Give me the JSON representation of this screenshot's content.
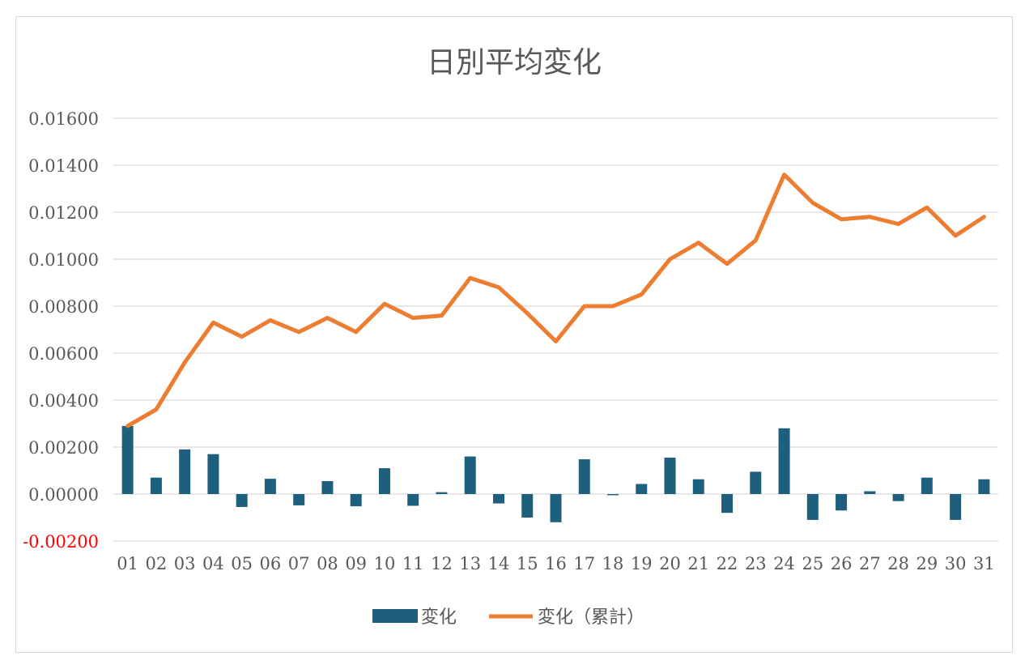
{
  "chart_data": {
    "type": "bar",
    "title": "日別平均変化",
    "xlabel": "",
    "ylabel": "",
    "ylim": [
      -0.002,
      0.016
    ],
    "ytick_step": 0.002,
    "y_tick_labels": [
      "-0.00200",
      "0.00000",
      "0.00200",
      "0.00400",
      "0.00600",
      "0.00800",
      "0.01000",
      "0.01200",
      "0.01400",
      "0.01600"
    ],
    "negative_tick_color": "#ff0000",
    "grid": true,
    "legend_position": "bottom",
    "categories": [
      "01",
      "02",
      "03",
      "04",
      "05",
      "06",
      "07",
      "08",
      "09",
      "10",
      "11",
      "12",
      "13",
      "14",
      "15",
      "16",
      "17",
      "18",
      "19",
      "20",
      "21",
      "22",
      "23",
      "24",
      "25",
      "26",
      "27",
      "28",
      "29",
      "30",
      "31"
    ],
    "series": [
      {
        "name": "変化",
        "type": "bar",
        "color": "#1f5f7e",
        "values": [
          0.0029,
          0.0007,
          0.0019,
          0.0017,
          -0.00055,
          0.00065,
          -0.00048,
          0.00055,
          -0.00052,
          0.0011,
          -0.0005,
          8e-05,
          0.0016,
          -0.0004,
          -0.001,
          -0.0012,
          0.00148,
          -5e-05,
          0.00043,
          0.00155,
          0.00063,
          -0.0008,
          0.00095,
          0.0028,
          -0.0011,
          -0.0007,
          0.00012,
          -0.0003,
          0.0007,
          -0.0011,
          0.00063
        ]
      },
      {
        "name": "変化（累計）",
        "type": "line",
        "color": "#ed7d31",
        "values": [
          0.0029,
          0.0036,
          0.0056,
          0.0073,
          0.0067,
          0.0074,
          0.0069,
          0.0075,
          0.0069,
          0.0081,
          0.0075,
          0.0076,
          0.0092,
          0.0088,
          0.0077,
          0.0065,
          0.008,
          0.008,
          0.0085,
          0.01,
          0.0107,
          0.0098,
          0.0108,
          0.0136,
          0.0124,
          0.0117,
          0.0118,
          0.0115,
          0.0122,
          0.011,
          0.0118
        ]
      }
    ]
  }
}
